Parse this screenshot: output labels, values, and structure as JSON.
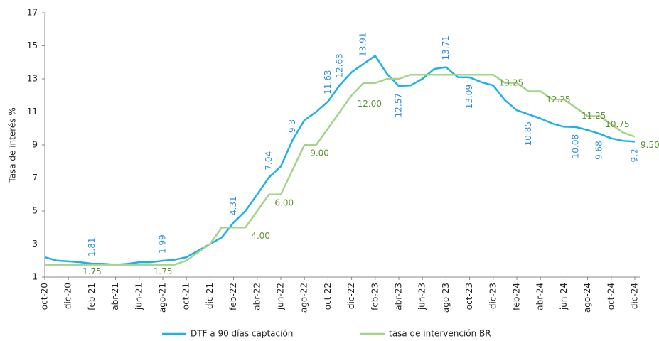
{
  "chart_data": {
    "type": "line",
    "y_label": "Tasa de interés %",
    "categories": [
      "oct-20",
      null,
      "dic-20",
      null,
      "feb-21",
      null,
      "abr-21",
      null,
      "jun-21",
      null,
      "ago-21",
      null,
      "oct-21",
      null,
      "dic-21",
      null,
      "feb-22",
      null,
      "abr-22",
      null,
      "jun-22",
      null,
      "ago-22",
      null,
      "oct-22",
      null,
      "dic-22",
      null,
      "feb-23",
      null,
      "abr-23",
      null,
      "jun-23",
      null,
      "ago-23",
      null,
      "oct-23",
      null,
      "dic-23",
      null,
      "feb-24",
      null,
      "abr-24",
      null,
      "jun-24",
      null,
      "ago-24",
      null,
      "oct-24",
      null,
      "dic-24"
    ],
    "ylim": [
      1,
      17
    ],
    "yticks": [
      1,
      3,
      5,
      7,
      9,
      11,
      13,
      15,
      17
    ],
    "legend": "bottom",
    "series": [
      {
        "name": "DTF a 90 días captación",
        "color": "#1fb0ea",
        "label_color": "#2e8fd6",
        "values": [
          2.2,
          2.0,
          1.95,
          1.9,
          1.81,
          1.8,
          1.75,
          1.8,
          1.9,
          1.9,
          1.99,
          2.05,
          2.2,
          2.6,
          3.0,
          3.4,
          4.31,
          5.0,
          6.0,
          7.04,
          7.7,
          9.3,
          10.5,
          11.0,
          11.63,
          12.63,
          13.4,
          13.91,
          14.4,
          13.3,
          12.57,
          12.6,
          13.0,
          13.6,
          13.71,
          13.1,
          13.09,
          12.8,
          12.6,
          11.7,
          11.1,
          10.85,
          10.6,
          10.3,
          10.1,
          10.08,
          9.9,
          9.68,
          9.4,
          9.25,
          9.2
        ],
        "value_labels": [
          null,
          null,
          null,
          null,
          "1.81",
          null,
          null,
          null,
          null,
          null,
          "1.99",
          null,
          null,
          null,
          null,
          null,
          "4.31",
          null,
          null,
          "7.04",
          null,
          "9.3",
          null,
          null,
          "11.63",
          "12.63",
          null,
          "13.91",
          null,
          null,
          "12.57",
          null,
          null,
          null,
          "13.71",
          null,
          "13.09",
          null,
          null,
          null,
          null,
          "10.85",
          null,
          null,
          null,
          "10.08",
          null,
          "9.68",
          null,
          null,
          "9.2"
        ]
      },
      {
        "name": "tasa de intervención BR",
        "color": "#a6d38a",
        "label_color": "#5e9232",
        "values": [
          1.75,
          1.75,
          1.75,
          1.75,
          1.75,
          1.75,
          1.75,
          1.75,
          1.75,
          1.75,
          1.75,
          1.75,
          2.0,
          2.5,
          3.0,
          4.0,
          4.0,
          4.0,
          5.0,
          6.0,
          6.0,
          7.5,
          9.0,
          9.0,
          10.0,
          11.0,
          12.0,
          12.75,
          12.75,
          13.0,
          13.0,
          13.25,
          13.25,
          13.25,
          13.25,
          13.25,
          13.25,
          13.25,
          13.25,
          12.75,
          12.75,
          12.25,
          12.25,
          11.75,
          11.75,
          11.25,
          10.75,
          10.75,
          10.25,
          9.75,
          9.5
        ],
        "value_labels": [
          null,
          null,
          null,
          null,
          "1.75",
          null,
          null,
          null,
          null,
          null,
          "1.75",
          null,
          null,
          null,
          null,
          null,
          null,
          "4.00",
          null,
          "6.00",
          null,
          null,
          "9.00",
          null,
          null,
          null,
          "12.00",
          null,
          null,
          null,
          null,
          null,
          null,
          null,
          null,
          null,
          null,
          null,
          "13.25",
          null,
          null,
          null,
          "12.25",
          null,
          null,
          "11.25",
          null,
          "10.75",
          null,
          null,
          "9.50"
        ]
      }
    ]
  }
}
